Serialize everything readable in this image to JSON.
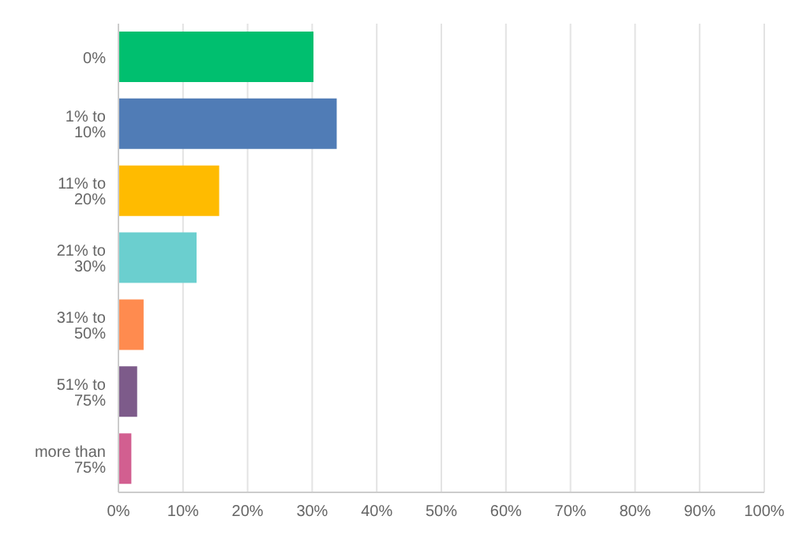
{
  "chart_data": {
    "type": "bar",
    "orientation": "horizontal",
    "categories": [
      "0%",
      "1% to 10%",
      "11% to 20%",
      "21% to 30%",
      "31% to 50%",
      "51% to 75%",
      "more than 75%"
    ],
    "values": [
      30.2,
      33.8,
      15.6,
      12.1,
      3.9,
      2.9,
      2.0
    ],
    "colors": [
      "#00bf6f",
      "#507cb6",
      "#ffbb00",
      "#6bcfcf",
      "#ff8b4f",
      "#7d5b8a",
      "#d25f90"
    ],
    "xlim": [
      0,
      100
    ],
    "xticks": [
      {
        "value": 0,
        "label": "0%"
      },
      {
        "value": 10,
        "label": "10%"
      },
      {
        "value": 20,
        "label": "20%"
      },
      {
        "value": 30,
        "label": "30%"
      },
      {
        "value": 40,
        "label": "40%"
      },
      {
        "value": 50,
        "label": "50%"
      },
      {
        "value": 60,
        "label": "60%"
      },
      {
        "value": 70,
        "label": "70%"
      },
      {
        "value": 80,
        "label": "80%"
      },
      {
        "value": 90,
        "label": "90%"
      },
      {
        "value": 100,
        "label": "100%"
      }
    ],
    "grid": "x"
  }
}
